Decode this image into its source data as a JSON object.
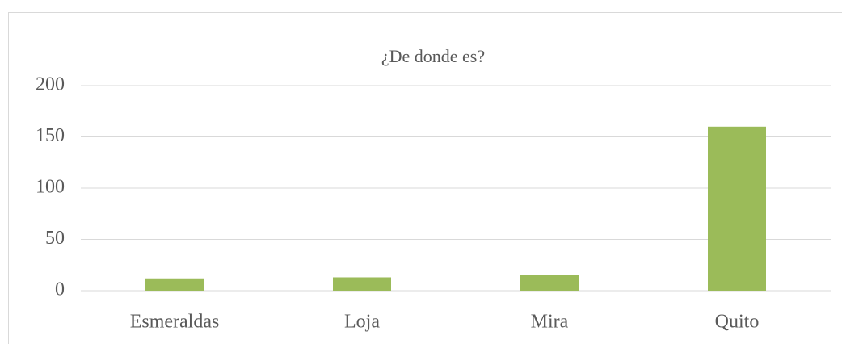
{
  "chart_data": {
    "type": "bar",
    "title": "¿De donde es?",
    "categories": [
      "Esmeraldas",
      "Loja",
      "Mira",
      "Quito"
    ],
    "values": [
      12,
      13,
      15,
      160
    ],
    "color": "#9bbb59",
    "ylim": [
      0,
      200
    ],
    "yticks": [
      0,
      50,
      100,
      150,
      200
    ],
    "grid": true
  }
}
